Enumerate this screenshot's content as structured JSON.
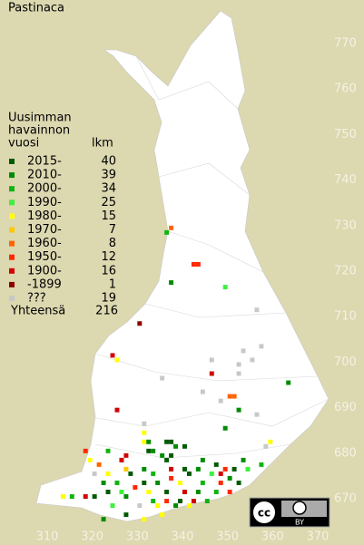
{
  "map": {
    "title": "Pastinaca",
    "legend_title": [
      "Uusimman",
      "havainnon",
      "vuosi"
    ],
    "count_header": "lkm",
    "legend": [
      {
        "label": "2015-",
        "count": 40,
        "color": "#005a00"
      },
      {
        "label": "2010-",
        "count": 39,
        "color": "#008c00"
      },
      {
        "label": "2000-",
        "count": 34,
        "color": "#10b410"
      },
      {
        "label": "1990-",
        "count": 25,
        "color": "#3cf03c"
      },
      {
        "label": "1980-",
        "count": 15,
        "color": "#ffff00"
      },
      {
        "label": "1970-",
        "count": 7,
        "color": "#ffc800"
      },
      {
        "label": "1960-",
        "count": 8,
        "color": "#ff6400"
      },
      {
        "label": "1950-",
        "count": 12,
        "color": "#ff2800"
      },
      {
        "label": "1900-",
        "count": 16,
        "color": "#d20000"
      },
      {
        "label": "-1899",
        "count": 1,
        "color": "#8c0000"
      },
      {
        "label": "???",
        "count": 19,
        "color": "#c8c8c8"
      }
    ],
    "total_label": "Yhteensä",
    "total": 216,
    "xlim": [
      310,
      370
    ],
    "ylim": [
      670,
      770
    ],
    "xticks": [
      310,
      320,
      330,
      340,
      350,
      360,
      370
    ],
    "yticks": [
      670,
      680,
      690,
      700,
      710,
      720,
      730,
      740,
      750,
      760,
      770
    ],
    "squares": [
      [
        337,
        729,
        6
      ],
      [
        336,
        728,
        2
      ],
      [
        342,
        721,
        7
      ],
      [
        343,
        721,
        7
      ],
      [
        337,
        717,
        1
      ],
      [
        349,
        716,
        3
      ],
      [
        356,
        711,
        10
      ],
      [
        330,
        708,
        9
      ],
      [
        357,
        703,
        10
      ],
      [
        353,
        702,
        10
      ],
      [
        324,
        701,
        8
      ],
      [
        325,
        700,
        4
      ],
      [
        355,
        700,
        10
      ],
      [
        346,
        700,
        10
      ],
      [
        352,
        699,
        10
      ],
      [
        346,
        697,
        8
      ],
      [
        352,
        697,
        10
      ],
      [
        363,
        695,
        1
      ],
      [
        335,
        696,
        10
      ],
      [
        344,
        693,
        10
      ],
      [
        350,
        692,
        6
      ],
      [
        351,
        692,
        6
      ],
      [
        348,
        691,
        10
      ],
      [
        352,
        689,
        1
      ],
      [
        356,
        688,
        10
      ],
      [
        325,
        689,
        8
      ],
      [
        331,
        686,
        10
      ],
      [
        349,
        685,
        1
      ],
      [
        331,
        684,
        4
      ],
      [
        331,
        682,
        4
      ],
      [
        332,
        682,
        1
      ],
      [
        336,
        682,
        0
      ],
      [
        337,
        682,
        0
      ],
      [
        338,
        681,
        1
      ],
      [
        340,
        681,
        0
      ],
      [
        359,
        682,
        4
      ],
      [
        358,
        681,
        10
      ],
      [
        318,
        680,
        7
      ],
      [
        323,
        680,
        2
      ],
      [
        327,
        679,
        8
      ],
      [
        332,
        680,
        0
      ],
      [
        333,
        680,
        1
      ],
      [
        335,
        679,
        1
      ],
      [
        337,
        679,
        0
      ],
      [
        319,
        678,
        4
      ],
      [
        321,
        677,
        6
      ],
      [
        326,
        678,
        8
      ],
      [
        336,
        678,
        0
      ],
      [
        344,
        678,
        1
      ],
      [
        353,
        678,
        1
      ],
      [
        357,
        677,
        2
      ],
      [
        347,
        677,
        0
      ],
      [
        327,
        676,
        5
      ],
      [
        331,
        676,
        1
      ],
      [
        337,
        676,
        8
      ],
      [
        340,
        676,
        0
      ],
      [
        343,
        676,
        1
      ],
      [
        349,
        676,
        7
      ],
      [
        351,
        676,
        0
      ],
      [
        354,
        676,
        3
      ],
      [
        320,
        675,
        10
      ],
      [
        323,
        675,
        4
      ],
      [
        328,
        675,
        0
      ],
      [
        333,
        675,
        2
      ],
      [
        337,
        674,
        7
      ],
      [
        341,
        675,
        0
      ],
      [
        346,
        675,
        3
      ],
      [
        348,
        675,
        8
      ],
      [
        350,
        674,
        1
      ],
      [
        322,
        673,
        1
      ],
      [
        325,
        673,
        2
      ],
      [
        329,
        672,
        7
      ],
      [
        331,
        673,
        0
      ],
      [
        334,
        673,
        1
      ],
      [
        339,
        673,
        4
      ],
      [
        344,
        673,
        2
      ],
      [
        348,
        673,
        7
      ],
      [
        352,
        673,
        0
      ],
      [
        323,
        671,
        0
      ],
      [
        326,
        671,
        3
      ],
      [
        332,
        671,
        4
      ],
      [
        336,
        671,
        0
      ],
      [
        340,
        671,
        8
      ],
      [
        343,
        671,
        1
      ],
      [
        347,
        671,
        2
      ],
      [
        350,
        671,
        7
      ],
      [
        313,
        670,
        4
      ],
      [
        315,
        670,
        2
      ],
      [
        318,
        670,
        8
      ],
      [
        320,
        670,
        0
      ],
      [
        327,
        670,
        1
      ],
      [
        333,
        669,
        2
      ],
      [
        336,
        669,
        7
      ],
      [
        339,
        669,
        0
      ],
      [
        342,
        669,
        8
      ],
      [
        345,
        669,
        2
      ],
      [
        324,
        668,
        3
      ],
      [
        330,
        668,
        10
      ],
      [
        334,
        668,
        4
      ],
      [
        338,
        668,
        1
      ],
      [
        341,
        668,
        4
      ],
      [
        327,
        666,
        0
      ],
      [
        331,
        665,
        4
      ],
      [
        335,
        666,
        4
      ],
      [
        322,
        665,
        1
      ]
    ],
    "license": {
      "cc": "cc",
      "by": "BY"
    }
  }
}
